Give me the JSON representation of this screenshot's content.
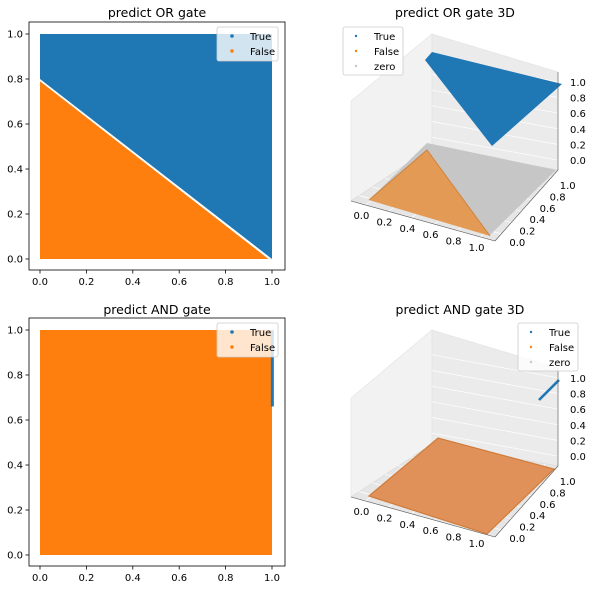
{
  "colors": {
    "true": "#1f77b4",
    "false": "#ff7f0e",
    "zero": "#c8c8c8"
  },
  "chart_data": [
    {
      "type": "scatter",
      "title": "predict OR gate",
      "xlim": [
        0,
        1
      ],
      "ylim": [
        0,
        1
      ],
      "xticks": [
        "0.0",
        "0.2",
        "0.4",
        "0.6",
        "0.8",
        "1.0"
      ],
      "yticks": [
        "0.0",
        "0.2",
        "0.4",
        "0.6",
        "0.8",
        "1.0"
      ],
      "legend": {
        "placement": "top-right",
        "entries": [
          "True",
          "False"
        ]
      },
      "series": [
        {
          "name": "True",
          "region": "x + 0.8*y > 0.8"
        },
        {
          "name": "False",
          "region": "x + 0.8*y <= 0.8"
        }
      ],
      "grid": false
    },
    {
      "type": "scatter3d",
      "title": "predict OR gate 3D",
      "xticks": [
        "0.0",
        "0.2",
        "0.4",
        "0.6",
        "0.8",
        "1.0"
      ],
      "yticks": [
        "0.0",
        "0.2",
        "0.4",
        "0.6",
        "0.8",
        "1.0"
      ],
      "zticks": [
        "0.0",
        "0.2",
        "0.4",
        "0.6",
        "0.8",
        "1.0"
      ],
      "legend": {
        "placement": "top-left",
        "entries": [
          "True",
          "False",
          "zero"
        ]
      },
      "series": [
        {
          "name": "True",
          "z": 1
        },
        {
          "name": "False",
          "z": 0
        },
        {
          "name": "zero",
          "z": 0
        }
      ],
      "grid": true
    },
    {
      "type": "scatter",
      "title": "predict AND gate",
      "xlim": [
        0,
        1
      ],
      "ylim": [
        0,
        1
      ],
      "xticks": [
        "0.0",
        "0.2",
        "0.4",
        "0.6",
        "0.8",
        "1.0"
      ],
      "yticks": [
        "0.0",
        "0.2",
        "0.4",
        "0.6",
        "0.8",
        "1.0"
      ],
      "legend": {
        "placement": "top-right",
        "entries": [
          "True",
          "False"
        ]
      },
      "series": [
        {
          "name": "True",
          "region": "x = 1, y >= 0.66"
        },
        {
          "name": "False",
          "region": "otherwise"
        }
      ],
      "grid": false
    },
    {
      "type": "scatter3d",
      "title": "predict AND gate 3D",
      "xticks": [
        "0.0",
        "0.2",
        "0.4",
        "0.6",
        "0.8",
        "1.0"
      ],
      "yticks": [
        "0.0",
        "0.2",
        "0.4",
        "0.6",
        "0.8",
        "1.0"
      ],
      "zticks": [
        "0.0",
        "0.2",
        "0.4",
        "0.6",
        "0.8",
        "1.0"
      ],
      "legend": {
        "placement": "top-right",
        "entries": [
          "True",
          "False",
          "zero"
        ]
      },
      "series": [
        {
          "name": "True",
          "z": 1
        },
        {
          "name": "False",
          "z": 0
        },
        {
          "name": "zero",
          "z": 0
        }
      ],
      "grid": true
    }
  ]
}
